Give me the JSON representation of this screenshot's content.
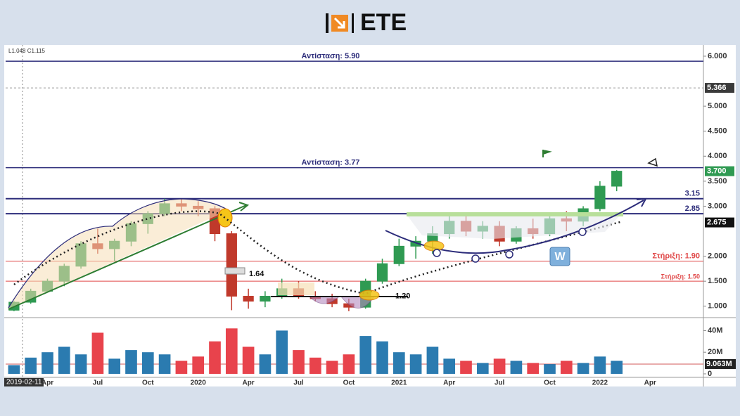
{
  "header": {
    "logo_text": "ETE"
  },
  "chart_data": {
    "type": "candlestick",
    "readout": "L1.048 C1.115",
    "cursor_date": "2019-02-11",
    "categories": [
      null,
      null,
      "Apr",
      null,
      null,
      "Jul",
      null,
      null,
      "Oct",
      null,
      null,
      "2020",
      null,
      null,
      "Apr",
      null,
      null,
      "Jul",
      null,
      null,
      "Oct",
      null,
      null,
      "2021",
      null,
      null,
      "Apr",
      null,
      null,
      "Jul",
      null,
      null,
      "Oct",
      null,
      null,
      "2022",
      null,
      null,
      "Apr"
    ],
    "open": [
      0.92,
      1.08,
      1.3,
      1.5,
      1.8,
      2.25,
      2.15,
      2.3,
      2.65,
      2.85,
      3.05,
      3.0,
      2.95,
      2.45,
      1.2,
      1.1,
      1.2,
      1.35,
      1.2,
      1.15,
      1.05,
      0.98,
      1.5,
      1.85,
      2.2,
      2.3,
      2.45,
      2.7,
      2.5,
      2.6,
      2.3,
      2.55,
      2.45,
      2.75,
      2.7,
      2.95,
      3.4,
      null,
      null
    ],
    "high": [
      1.1,
      1.35,
      1.55,
      1.85,
      2.3,
      2.55,
      2.35,
      2.7,
      2.9,
      3.15,
      3.15,
      3.1,
      3.0,
      2.5,
      1.35,
      1.3,
      1.55,
      1.5,
      1.3,
      1.25,
      1.15,
      1.55,
      1.95,
      2.35,
      2.4,
      2.6,
      2.8,
      2.8,
      2.7,
      2.7,
      2.6,
      2.75,
      2.8,
      2.9,
      3.0,
      3.5,
      3.72,
      null,
      null
    ],
    "low": [
      0.9,
      1.05,
      1.28,
      1.4,
      1.75,
      2.05,
      1.9,
      2.2,
      2.45,
      2.8,
      2.9,
      2.8,
      2.3,
      0.92,
      0.95,
      0.98,
      1.15,
      1.15,
      1.1,
      0.98,
      0.9,
      0.95,
      1.45,
      1.8,
      1.95,
      2.05,
      2.35,
      2.4,
      2.35,
      2.2,
      2.25,
      2.35,
      2.4,
      2.5,
      2.6,
      2.9,
      3.3,
      null,
      null
    ],
    "close": [
      1.08,
      1.3,
      1.5,
      1.8,
      2.25,
      2.15,
      2.3,
      2.65,
      2.85,
      3.05,
      3.0,
      2.95,
      2.45,
      1.2,
      1.1,
      1.2,
      1.35,
      1.2,
      1.15,
      1.05,
      0.98,
      1.5,
      1.85,
      2.2,
      2.3,
      2.45,
      2.7,
      2.5,
      2.6,
      2.3,
      2.55,
      2.45,
      2.75,
      2.7,
      2.95,
      3.4,
      3.7,
      null,
      null
    ],
    "up_color": "#2f9a52",
    "down_color": "#c0392b",
    "ylim": [
      0.87,
      6.14
    ],
    "yticks": [
      {
        "value": 1,
        "label": "1.000"
      },
      {
        "value": 1.5,
        "label": "1.500"
      },
      {
        "value": 2,
        "label": "2.000"
      },
      {
        "value": 3,
        "label": "3.000"
      },
      {
        "value": 3.5,
        "label": "3.500"
      },
      {
        "value": 4,
        "label": "4.000"
      },
      {
        "value": 4.5,
        "label": "4.500"
      },
      {
        "value": 5,
        "label": "5.000"
      },
      {
        "value": 6,
        "label": "6.000"
      }
    ],
    "levels": [
      {
        "value": 5.9,
        "label": "Αντίσταση: 5.90",
        "color": "#2c2c7a"
      },
      {
        "value": 3.77,
        "label": "Αντίσταση: 3.77",
        "color": "#2c2c7a"
      },
      {
        "value": 3.15,
        "color": "#2c2c7a"
      },
      {
        "value": 2.85,
        "color": "#2c2c7a"
      },
      {
        "value": 1.9,
        "label": "Στήριξη: 1.90",
        "color": "#e04848"
      },
      {
        "value": 1.5,
        "label": "Στήριξη: 1.50",
        "color": "#e04848"
      }
    ],
    "price_markers": [
      {
        "value": 5.366,
        "label": "5.366",
        "color": "#3a3a3a"
      },
      {
        "value": 3.7,
        "label": "3.700",
        "color": "#2f9a52"
      },
      {
        "value": 2.675,
        "label": "2.675",
        "color": "#111111"
      }
    ],
    "annotations": [
      1.64,
      {
        "value": 1.2,
        "label": "1.20"
      },
      "W"
    ],
    "volume": {
      "values": [
        8,
        15,
        20,
        25,
        18,
        38,
        14,
        22,
        20,
        18,
        12,
        16,
        30,
        42,
        25,
        18,
        40,
        22,
        15,
        12,
        18,
        35,
        30,
        20,
        18,
        25,
        14,
        12,
        10,
        14,
        12,
        10,
        9,
        12,
        10,
        16,
        12,
        null,
        null
      ],
      "up_color": "#2b7bb0",
      "down_color": "#e8434c",
      "ylim": [
        0,
        50
      ],
      "yticks": [
        0,
        {
          "value": 20,
          "label": "20M"
        },
        {
          "value": 40,
          "label": "40M"
        }
      ],
      "marker": {
        "value": 9.063,
        "label": "9.063M",
        "color": "#222222"
      }
    }
  }
}
